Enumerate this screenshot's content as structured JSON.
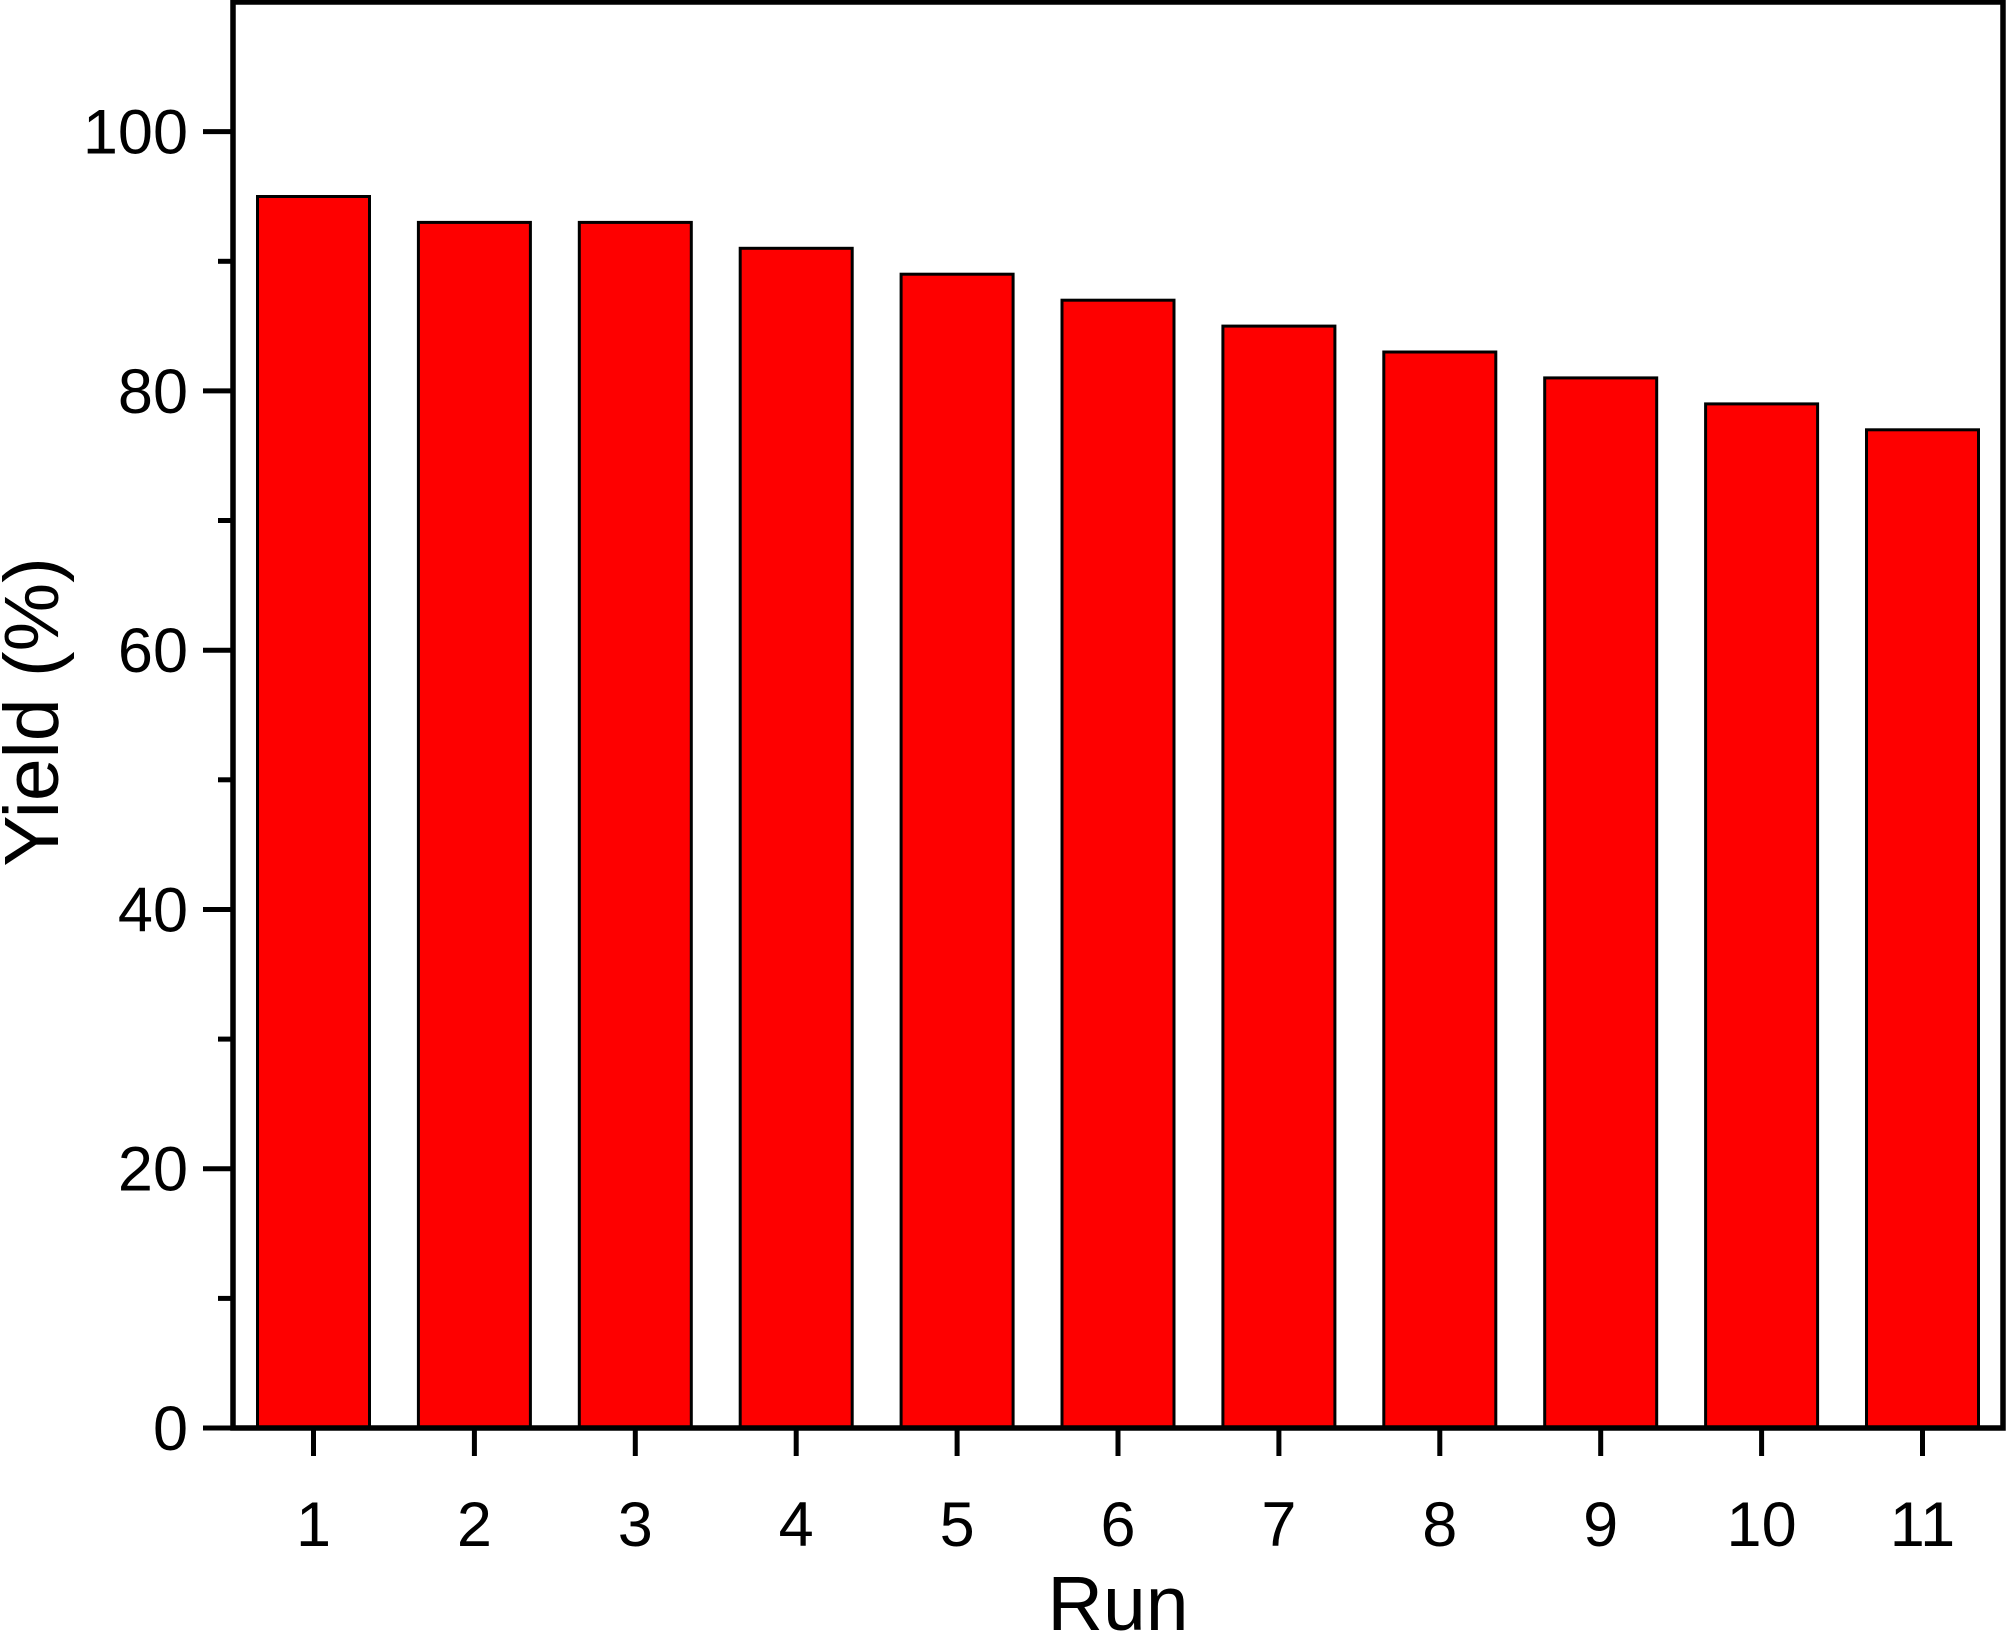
{
  "figure": {
    "background": "#ffffff",
    "axis_color": "#000000",
    "text_color": "#000000"
  },
  "chart_data": {
    "type": "bar",
    "title": "",
    "xlabel": "Run",
    "ylabel": "Yield (%)",
    "categories": [
      "1",
      "2",
      "3",
      "4",
      "5",
      "6",
      "7",
      "8",
      "9",
      "10",
      "11"
    ],
    "values": [
      95,
      93,
      93,
      91,
      89,
      87,
      85,
      83,
      81,
      79,
      77
    ],
    "ylim": [
      0,
      110
    ],
    "y_major_tick_values": [
      0,
      20,
      40,
      60,
      80,
      100
    ],
    "y_major_tick_labels": [
      "0",
      "20",
      "40",
      "60",
      "80",
      "100"
    ],
    "y_minor_tick_values": [
      10,
      30,
      50,
      70,
      90
    ],
    "bar_color": "#fe0000",
    "bar_edge_color": "#000000",
    "grid": false,
    "legend": "none",
    "frame": "full-box"
  }
}
